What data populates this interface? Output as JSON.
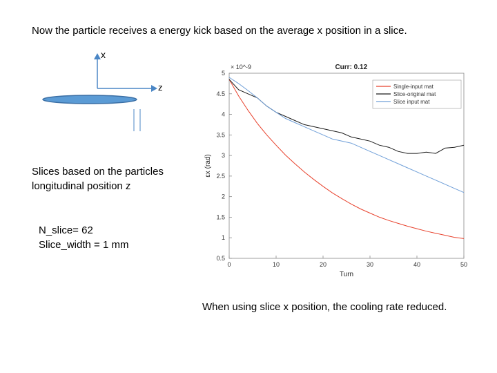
{
  "slide": {
    "title": "Now the particle receives a energy kick based on the average x position in a slice.",
    "slices_text": "Slices based on the particles longitudinal position z",
    "n_slice": "N_slice= 62",
    "slice_width": "Slice_width = 1 mm",
    "conclusion": "When using slice x position, the cooling rate reduced."
  },
  "diagram": {
    "x_label": "x",
    "z_label": "z",
    "beam_color": "#5b9bd5"
  },
  "chart_data": {
    "type": "line",
    "title": "Curr: 0.12",
    "xlabel": "Turn",
    "ylabel": "εx (rad)",
    "exponent": "× 10^-9",
    "xlim": [
      0,
      50
    ],
    "ylim": [
      0.5,
      5
    ],
    "xticks": [
      "0",
      "10",
      "20",
      "30",
      "40",
      "50"
    ],
    "yticks": [
      "0.5",
      "1",
      "1.5",
      "2",
      "2.5",
      "3",
      "3.5",
      "4",
      "4.5",
      "5"
    ],
    "legend_position": "top-right",
    "series": [
      {
        "name": "Single-input mat",
        "color": "#e8412c",
        "x": [
          0,
          2,
          4,
          6,
          8,
          10,
          12,
          14,
          16,
          18,
          20,
          22,
          24,
          26,
          28,
          30,
          32,
          34,
          36,
          38,
          40,
          42,
          44,
          46,
          48,
          50
        ],
        "y": [
          4.85,
          4.45,
          4.1,
          3.78,
          3.5,
          3.25,
          3.01,
          2.8,
          2.6,
          2.42,
          2.25,
          2.09,
          1.95,
          1.82,
          1.7,
          1.6,
          1.5,
          1.42,
          1.35,
          1.28,
          1.22,
          1.16,
          1.11,
          1.06,
          1.01,
          0.98
        ]
      },
      {
        "name": "Slice-original mat",
        "color": "#1a1a1a",
        "x": [
          0,
          2,
          4,
          6,
          8,
          10,
          12,
          14,
          16,
          18,
          20,
          22,
          24,
          26,
          28,
          30,
          32,
          34,
          36,
          38,
          40,
          42,
          44,
          46,
          48,
          50
        ],
        "y": [
          4.85,
          4.6,
          4.5,
          4.4,
          4.2,
          4.05,
          3.95,
          3.85,
          3.75,
          3.7,
          3.65,
          3.6,
          3.55,
          3.45,
          3.4,
          3.35,
          3.25,
          3.2,
          3.1,
          3.05,
          3.05,
          3.08,
          3.05,
          3.18,
          3.2,
          3.25
        ]
      },
      {
        "name": "Slice input mat",
        "color": "#6f9fd8",
        "x": [
          0,
          2,
          4,
          6,
          8,
          10,
          12,
          14,
          16,
          18,
          20,
          22,
          24,
          26,
          28,
          30,
          32,
          34,
          36,
          38,
          40,
          42,
          44,
          46,
          48,
          50
        ],
        "y": [
          4.9,
          4.75,
          4.58,
          4.4,
          4.2,
          4.05,
          3.9,
          3.8,
          3.7,
          3.6,
          3.5,
          3.4,
          3.35,
          3.3,
          3.2,
          3.1,
          3.0,
          2.9,
          2.8,
          2.7,
          2.6,
          2.5,
          2.4,
          2.3,
          2.2,
          2.1
        ]
      }
    ]
  }
}
